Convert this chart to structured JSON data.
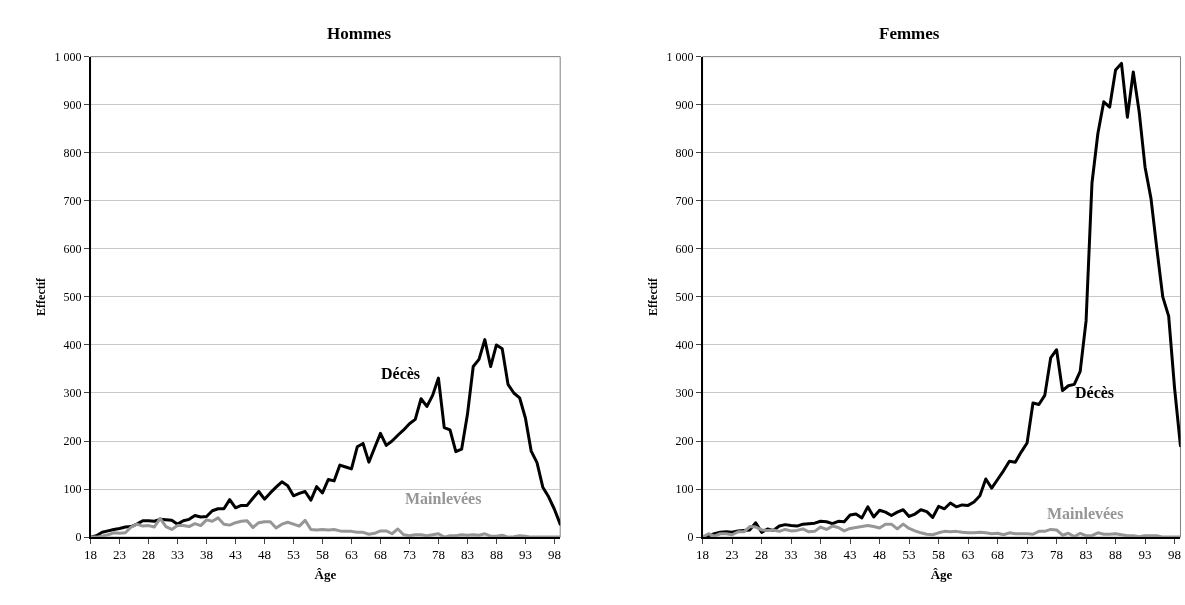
{
  "chart_data": [
    {
      "type": "line",
      "title": "Hommes",
      "xlabel": "Âge",
      "ylabel": "Effectif",
      "x": [
        18,
        19,
        20,
        21,
        22,
        23,
        24,
        25,
        26,
        27,
        28,
        29,
        30,
        31,
        32,
        33,
        34,
        35,
        36,
        37,
        38,
        39,
        40,
        41,
        42,
        43,
        44,
        45,
        46,
        47,
        48,
        49,
        50,
        51,
        52,
        53,
        54,
        55,
        56,
        57,
        58,
        59,
        60,
        61,
        62,
        63,
        64,
        65,
        66,
        67,
        68,
        69,
        70,
        71,
        72,
        73,
        74,
        75,
        76,
        77,
        78,
        79,
        80,
        81,
        82,
        83,
        84,
        85,
        86,
        87,
        88,
        89,
        90,
        91,
        92,
        93,
        94,
        95,
        96,
        97,
        98,
        99
      ],
      "series": [
        {
          "name": "Décès",
          "color": "#000000",
          "values": [
            0,
            3,
            10,
            13,
            16,
            18,
            21,
            22,
            27,
            34,
            34,
            33,
            37,
            36,
            35,
            27,
            34,
            37,
            45,
            42,
            43,
            55,
            59,
            59,
            78,
            61,
            66,
            66,
            81,
            95,
            79,
            92,
            104,
            115,
            107,
            86,
            91,
            95,
            77,
            105,
            92,
            120,
            117,
            150,
            146,
            142,
            188,
            195,
            156,
            186,
            216,
            191,
            200,
            212,
            223,
            236,
            245,
            288,
            272,
            295,
            331,
            228,
            223,
            178,
            183,
            255,
            355,
            370,
            411,
            355,
            400,
            392,
            318,
            300,
            290,
            248,
            179,
            155,
            104,
            84,
            58,
            27
          ]
        },
        {
          "name": "Mainlevées",
          "color": "#969696",
          "values": [
            0,
            0,
            2,
            5,
            9,
            8,
            9,
            21,
            27,
            23,
            24,
            21,
            39,
            22,
            16,
            24,
            24,
            22,
            28,
            24,
            36,
            33,
            40,
            27,
            25,
            30,
            33,
            34,
            20,
            30,
            32,
            32,
            19,
            27,
            31,
            27,
            23,
            35,
            16,
            15,
            16,
            15,
            16,
            13,
            12,
            12,
            10,
            10,
            6,
            8,
            13,
            13,
            7,
            17,
            5,
            3,
            5,
            5,
            3,
            5,
            7,
            0,
            3,
            3,
            5,
            4,
            5,
            4,
            7,
            2,
            2,
            4,
            0,
            1,
            3,
            2,
            0,
            0,
            0,
            0,
            0,
            0
          ]
        }
      ],
      "xlim": [
        18,
        99
      ],
      "xticks": [
        18,
        23,
        28,
        33,
        38,
        43,
        48,
        53,
        58,
        63,
        68,
        73,
        78,
        83,
        88,
        93,
        98
      ],
      "ylim": [
        0,
        1000
      ],
      "yticks": [
        0,
        100,
        200,
        300,
        400,
        500,
        600,
        700,
        800,
        900,
        {
          "value": 1000,
          "label": "1 000"
        }
      ],
      "grid": "y",
      "line_style": "solid"
    },
    {
      "type": "line",
      "title": "Femmes",
      "xlabel": "Âge",
      "ylabel": "Effectif",
      "x": [
        18,
        19,
        20,
        21,
        22,
        23,
        24,
        25,
        26,
        27,
        28,
        29,
        30,
        31,
        32,
        33,
        34,
        35,
        36,
        37,
        38,
        39,
        40,
        41,
        42,
        43,
        44,
        45,
        46,
        47,
        48,
        49,
        50,
        51,
        52,
        53,
        54,
        55,
        56,
        57,
        58,
        59,
        60,
        61,
        62,
        63,
        64,
        65,
        66,
        67,
        68,
        69,
        70,
        71,
        72,
        73,
        74,
        75,
        76,
        77,
        78,
        79,
        80,
        81,
        82,
        83,
        84,
        85,
        86,
        87,
        88,
        89,
        90,
        91,
        92,
        93,
        94,
        95,
        96,
        97,
        98,
        99
      ],
      "series": [
        {
          "name": "Décès",
          "color": "#000000",
          "values": [
            0,
            3,
            7,
            10,
            11,
            10,
            13,
            14,
            15,
            30,
            10,
            17,
            14,
            23,
            26,
            24,
            23,
            27,
            28,
            29,
            33,
            32,
            28,
            33,
            32,
            46,
            48,
            40,
            63,
            42,
            56,
            52,
            45,
            52,
            57,
            43,
            48,
            57,
            53,
            41,
            64,
            59,
            71,
            63,
            67,
            66,
            73,
            86,
            121,
            102,
            120,
            138,
            158,
            156,
            177,
            196,
            279,
            276,
            295,
            373,
            390,
            305,
            315,
            318,
            345,
            450,
            737,
            840,
            906,
            895,
            972,
            986,
            874,
            968,
            885,
            770,
            705,
            600,
            500,
            460,
            310,
            190
          ]
        },
        {
          "name": "Mainlevées",
          "color": "#969696",
          "values": [
            0,
            7,
            2,
            7,
            7,
            5,
            11,
            11,
            22,
            21,
            15,
            14,
            15,
            12,
            16,
            13,
            14,
            17,
            11,
            12,
            21,
            16,
            23,
            20,
            13,
            18,
            20,
            22,
            24,
            22,
            19,
            27,
            27,
            17,
            27,
            18,
            13,
            9,
            6,
            5,
            9,
            12,
            11,
            12,
            10,
            9,
            9,
            10,
            9,
            7,
            8,
            5,
            9,
            7,
            7,
            7,
            6,
            12,
            12,
            16,
            15,
            4,
            8,
            1,
            8,
            3,
            3,
            9,
            6,
            6,
            7,
            5,
            3,
            3,
            1,
            3,
            3,
            3,
            0,
            0,
            0,
            0
          ]
        }
      ],
      "xlim": [
        18,
        99
      ],
      "xticks": [
        18,
        23,
        28,
        33,
        38,
        43,
        48,
        53,
        58,
        63,
        68,
        73,
        78,
        83,
        88,
        93,
        98
      ],
      "ylim": [
        0,
        1000
      ],
      "yticks": [
        0,
        100,
        200,
        300,
        400,
        500,
        600,
        700,
        800,
        900,
        {
          "value": 1000,
          "label": "1 000"
        }
      ],
      "grid": "y",
      "line_style": "solid"
    }
  ]
}
